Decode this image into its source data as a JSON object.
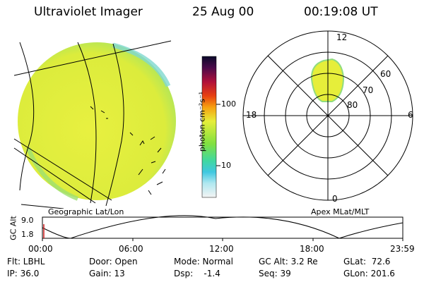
{
  "header": {
    "instrument": "Ultraviolet Imager",
    "date": "25 Aug 00",
    "time": "00:19:08 UT"
  },
  "colorbar": {
    "unit_label": "photon cm⁻²s⁻¹",
    "ticks": [
      "100",
      "10"
    ]
  },
  "polar_plot": {
    "mlt_labels": {
      "top": "12",
      "left": "18",
      "right": "6",
      "bottom": "0"
    },
    "lat_labels": [
      "60",
      "70",
      "80"
    ]
  },
  "map_labels": {
    "left": "Geographic Lat/Lon",
    "right": "Apex MLat/MLT"
  },
  "altitude_track": {
    "axis_label": "GC Alt",
    "ymax": "9.0",
    "ymin": "1.8",
    "time_ticks": [
      "00:00",
      "06:00",
      "12:00",
      "18:00",
      "23:59"
    ]
  },
  "info": {
    "flt": "Flt: LBHL",
    "ip": "IP: 36.0",
    "door": "Door: Open",
    "gain": "Gain: 13",
    "mode": "Mode: Normal",
    "dsp": "Dsp:    -1.4",
    "gcalt": "GC Alt: 3.2 Re",
    "seq": "Seq: 39",
    "glat": "GLat:  72.6",
    "glon": "GLon: 201.6"
  },
  "colors": {
    "earth_fill": "#e6ee3a",
    "limb_cyan": "#7fe0d0",
    "grid_line": "#000000"
  }
}
